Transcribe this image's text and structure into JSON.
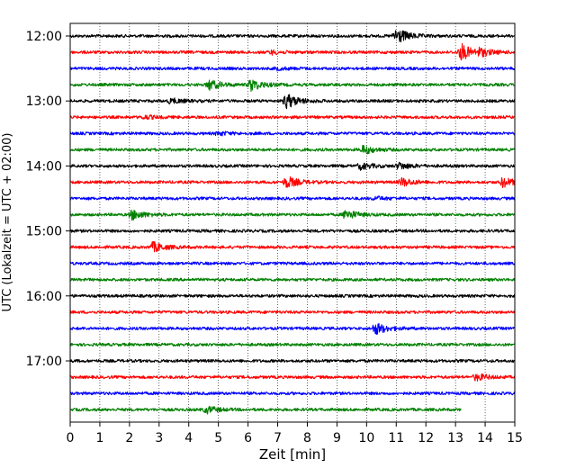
{
  "chart_data": {
    "type": "line",
    "title": "",
    "xlabel": "Zeit  [min]",
    "ylabel": "UTC (Lokalzeit = UTC + 02:00)",
    "xlim": [
      0,
      15
    ],
    "x_ticks": [
      0,
      1,
      2,
      3,
      4,
      5,
      6,
      7,
      8,
      9,
      10,
      11,
      12,
      13,
      14,
      15
    ],
    "y_tick_labels": [
      "12:00",
      "13:00",
      "14:00",
      "15:00",
      "16:00",
      "17:00"
    ],
    "grid": {
      "x": true,
      "y": false,
      "style": "dotted"
    },
    "legend": "none",
    "trace_interval_min": 15,
    "trace_colors": [
      "#000000",
      "#ff0000",
      "#0000ff",
      "#008000"
    ],
    "traces": [
      {
        "start": "12:00",
        "color": "#000000",
        "end_min": 15,
        "events": [
          {
            "t": 11.0,
            "amp": 1.0
          }
        ]
      },
      {
        "start": "12:15",
        "color": "#ff0000",
        "end_min": 15,
        "events": [
          {
            "t": 13.2,
            "amp": 1.0
          },
          {
            "t": 13.8,
            "amp": 0.4
          },
          {
            "t": 6.8,
            "amp": 0.2
          }
        ]
      },
      {
        "start": "12:30",
        "color": "#0000ff",
        "end_min": 15,
        "events": [
          {
            "t": 7.0,
            "amp": 0.15
          }
        ]
      },
      {
        "start": "12:45",
        "color": "#008000",
        "end_min": 15,
        "events": [
          {
            "t": 4.7,
            "amp": 0.6
          },
          {
            "t": 6.1,
            "amp": 0.7
          }
        ]
      },
      {
        "start": "13:00",
        "color": "#000000",
        "end_min": 15,
        "events": [
          {
            "t": 7.3,
            "amp": 0.9
          },
          {
            "t": 3.4,
            "amp": 0.3
          }
        ]
      },
      {
        "start": "13:15",
        "color": "#ff0000",
        "end_min": 15,
        "events": [
          {
            "t": 2.5,
            "amp": 0.2
          }
        ]
      },
      {
        "start": "13:30",
        "color": "#0000ff",
        "end_min": 15,
        "events": [
          {
            "t": 5.0,
            "amp": 0.2
          }
        ]
      },
      {
        "start": "13:45",
        "color": "#008000",
        "end_min": 15,
        "events": [
          {
            "t": 9.9,
            "amp": 0.5
          }
        ]
      },
      {
        "start": "14:00",
        "color": "#000000",
        "end_min": 15,
        "events": [
          {
            "t": 9.8,
            "amp": 0.4
          },
          {
            "t": 11.1,
            "amp": 0.4
          }
        ]
      },
      {
        "start": "14:15",
        "color": "#ff0000",
        "end_min": 15,
        "events": [
          {
            "t": 7.3,
            "amp": 0.7
          },
          {
            "t": 11.2,
            "amp": 0.5
          },
          {
            "t": 14.6,
            "amp": 0.6
          }
        ]
      },
      {
        "start": "14:30",
        "color": "#0000ff",
        "end_min": 15,
        "events": [
          {
            "t": 10.3,
            "amp": 0.2
          }
        ]
      },
      {
        "start": "14:45",
        "color": "#008000",
        "end_min": 15,
        "events": [
          {
            "t": 2.1,
            "amp": 0.6
          },
          {
            "t": 9.3,
            "amp": 0.6
          }
        ]
      },
      {
        "start": "15:00",
        "color": "#000000",
        "end_min": 15,
        "events": []
      },
      {
        "start": "15:15",
        "color": "#ff0000",
        "end_min": 15,
        "events": [
          {
            "t": 2.8,
            "amp": 0.6
          }
        ]
      },
      {
        "start": "15:30",
        "color": "#0000ff",
        "end_min": 15,
        "events": []
      },
      {
        "start": "15:45",
        "color": "#008000",
        "end_min": 15,
        "events": []
      },
      {
        "start": "16:00",
        "color": "#000000",
        "end_min": 15,
        "events": []
      },
      {
        "start": "16:15",
        "color": "#ff0000",
        "end_min": 15,
        "events": []
      },
      {
        "start": "16:30",
        "color": "#0000ff",
        "end_min": 15,
        "events": [
          {
            "t": 10.3,
            "amp": 0.7
          }
        ]
      },
      {
        "start": "16:45",
        "color": "#008000",
        "end_min": 15,
        "events": []
      },
      {
        "start": "17:00",
        "color": "#000000",
        "end_min": 15,
        "events": []
      },
      {
        "start": "17:15",
        "color": "#ff0000",
        "end_min": 15,
        "events": [
          {
            "t": 13.7,
            "amp": 0.4
          }
        ]
      },
      {
        "start": "17:30",
        "color": "#0000ff",
        "end_min": 15,
        "events": []
      },
      {
        "start": "17:45",
        "color": "#008000",
        "end_min": 13.2,
        "events": [
          {
            "t": 4.6,
            "amp": 0.4
          }
        ]
      }
    ]
  }
}
